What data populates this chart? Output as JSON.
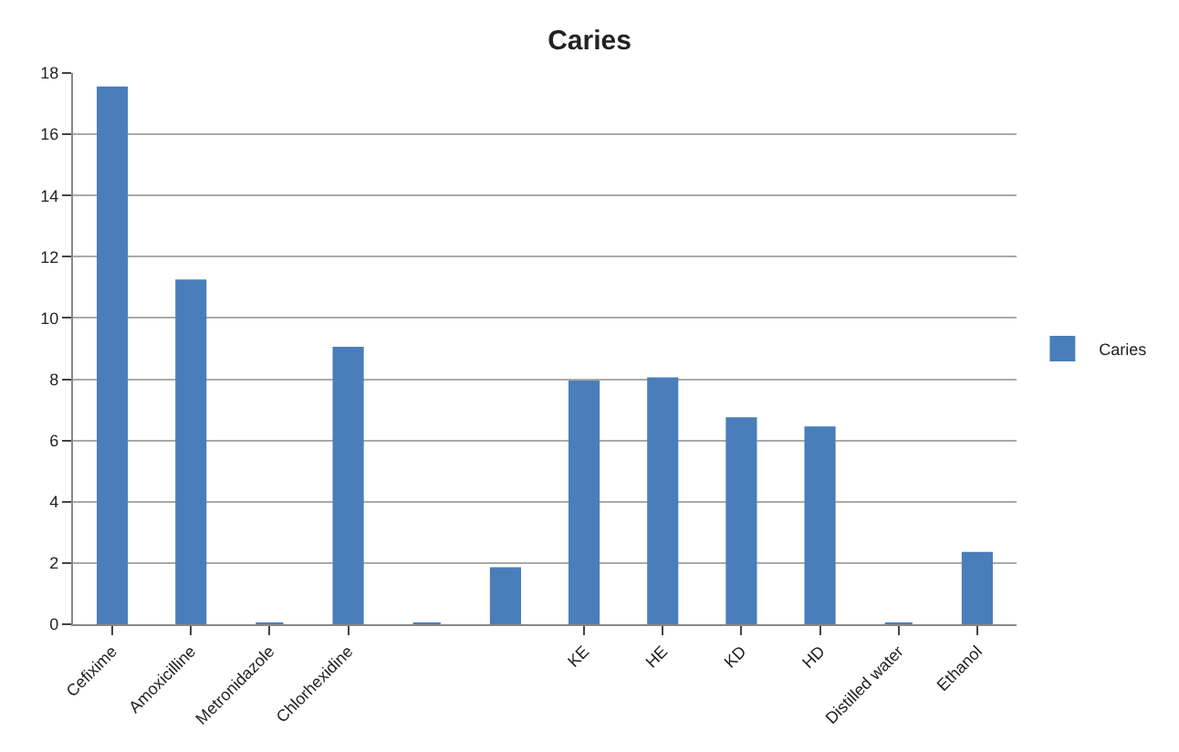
{
  "chart_data": {
    "type": "bar",
    "title": "Caries",
    "categories": [
      "Cefixime",
      "Amoxicilline",
      "Metronidazole",
      "Chlorhexidine",
      null,
      null,
      "KE",
      "HE",
      "KD",
      "HD",
      "Distilled water",
      "Ethanol"
    ],
    "series": [
      {
        "name": "Caries",
        "color": "#4a7ebb",
        "values": [
          17.5,
          11.2,
          0,
          9,
          0,
          1.8,
          7.9,
          8,
          6.7,
          6.4,
          0,
          2.3
        ]
      }
    ],
    "ylim": [
      0,
      18
    ],
    "yticks": [
      0,
      2,
      4,
      6,
      8,
      10,
      12,
      14,
      16,
      18
    ],
    "grid": "y",
    "legend": "right"
  }
}
